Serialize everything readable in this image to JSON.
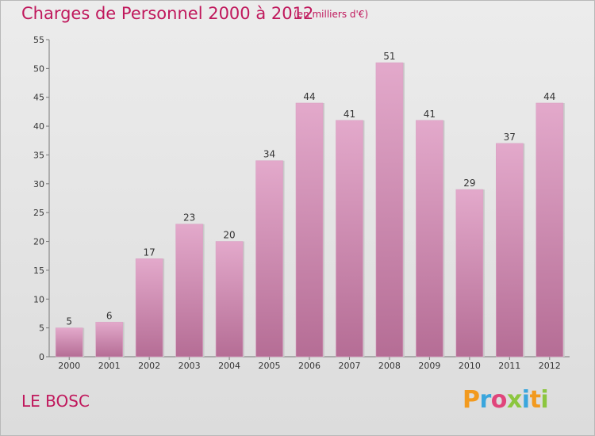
{
  "header": {
    "title": "Charges de Personnel 2000 à 2012",
    "subtitle": "(en milliers d'€)"
  },
  "footer": {
    "commune": "LE BOSC",
    "logo": "Proxiti",
    "logo_colors": [
      "#f29a1f",
      "#3aa6dd",
      "#e0457b",
      "#8cc63f",
      "#3aa6dd",
      "#f29a1f",
      "#8cc63f"
    ]
  },
  "chart_data": {
    "type": "bar",
    "title": "Charges de Personnel 2000 à 2012",
    "subtitle": "(en milliers d'€)",
    "xlabel": "",
    "ylabel": "",
    "categories": [
      "2000",
      "2001",
      "2002",
      "2003",
      "2004",
      "2005",
      "2006",
      "2007",
      "2008",
      "2009",
      "2010",
      "2011",
      "2012"
    ],
    "values": [
      5,
      6,
      17,
      23,
      20,
      34,
      44,
      41,
      51,
      41,
      29,
      37,
      44
    ],
    "ylim": [
      0,
      55
    ],
    "yticks": [
      0,
      5,
      10,
      15,
      20,
      25,
      30,
      35,
      40,
      45,
      50,
      55
    ],
    "grid": false,
    "bar_color": "#c77fa8"
  }
}
